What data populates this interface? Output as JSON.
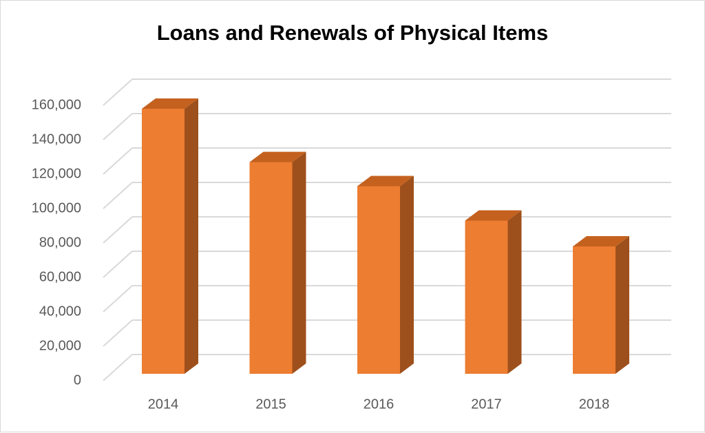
{
  "chart_data": {
    "type": "bar3d",
    "title": "Loans and Renewals of Physical Items",
    "categories": [
      "2014",
      "2015",
      "2016",
      "2017",
      "2018"
    ],
    "values": [
      154000,
      123000,
      109000,
      89000,
      74000
    ],
    "color": "#ed7d31",
    "ylim": [
      0,
      160000
    ],
    "yticks": [
      0,
      {
        "value": 20000,
        "label": "20,000"
      },
      {
        "value": 40000,
        "label": "40,000"
      },
      {
        "value": 60000,
        "label": "60,000"
      },
      {
        "value": 80000,
        "label": "80,000"
      },
      {
        "value": 100000,
        "label": "100,000"
      },
      {
        "value": 120000,
        "label": "120,000"
      },
      {
        "value": 140000,
        "label": "140,000"
      },
      {
        "value": 160000,
        "label": "160,000"
      }
    ],
    "grid": true
  }
}
